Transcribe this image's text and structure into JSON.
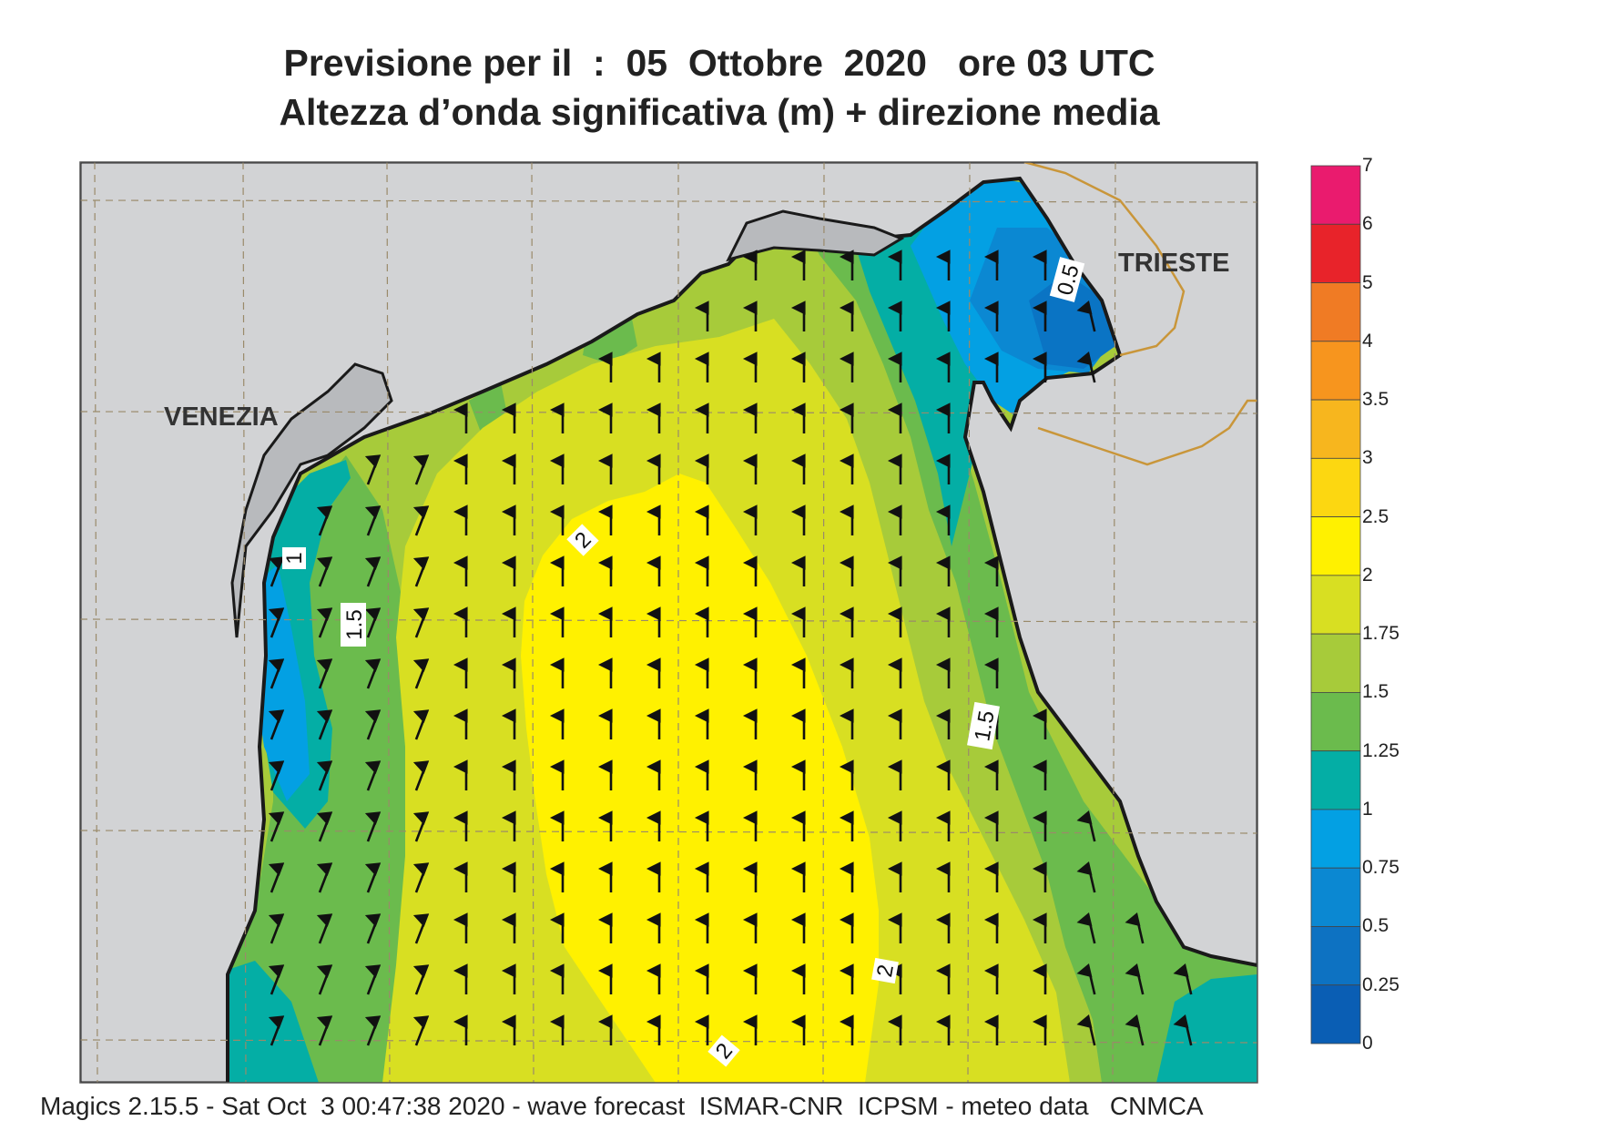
{
  "title_line1": "Previsione per il  :  05  Ottobre  2020   ore 03 UTC",
  "title_line2": "Altezza d’onda significativa (m) + direzione media",
  "cities": {
    "venezia": "VENEZIA",
    "trieste": "TRIESTE"
  },
  "contour_labels": {
    "c05": "0.5",
    "c1": "1",
    "c15_west": "1.5",
    "c15_east": "1.5",
    "c2_north": "2",
    "c2_south": "2",
    "c2_bottom": "2"
  },
  "colorbar": {
    "labels": [
      "7",
      "6",
      "5",
      "4",
      "3.5",
      "3",
      "2.5",
      "2",
      "1.75",
      "1.5",
      "1.25",
      "1",
      "0.75",
      "0.5",
      "0.25",
      "0"
    ],
    "colors": [
      "#ea1b6e",
      "#e8232a",
      "#f07b24",
      "#f7951e",
      "#f7b61e",
      "#fcd711",
      "#fff100",
      "#d8df22",
      "#a7cb3a",
      "#6bbb4d",
      "#04aea5",
      "#03a0e3",
      "#0b88d2",
      "#0d72c2",
      "#0a5eb4"
    ]
  },
  "footer": "Magics 2.15.5 - Sat Oct  3 00:47:38 2020 - wave forecast  ISMAR-CNR  ICPSM - meteo data   CNMCA"
}
